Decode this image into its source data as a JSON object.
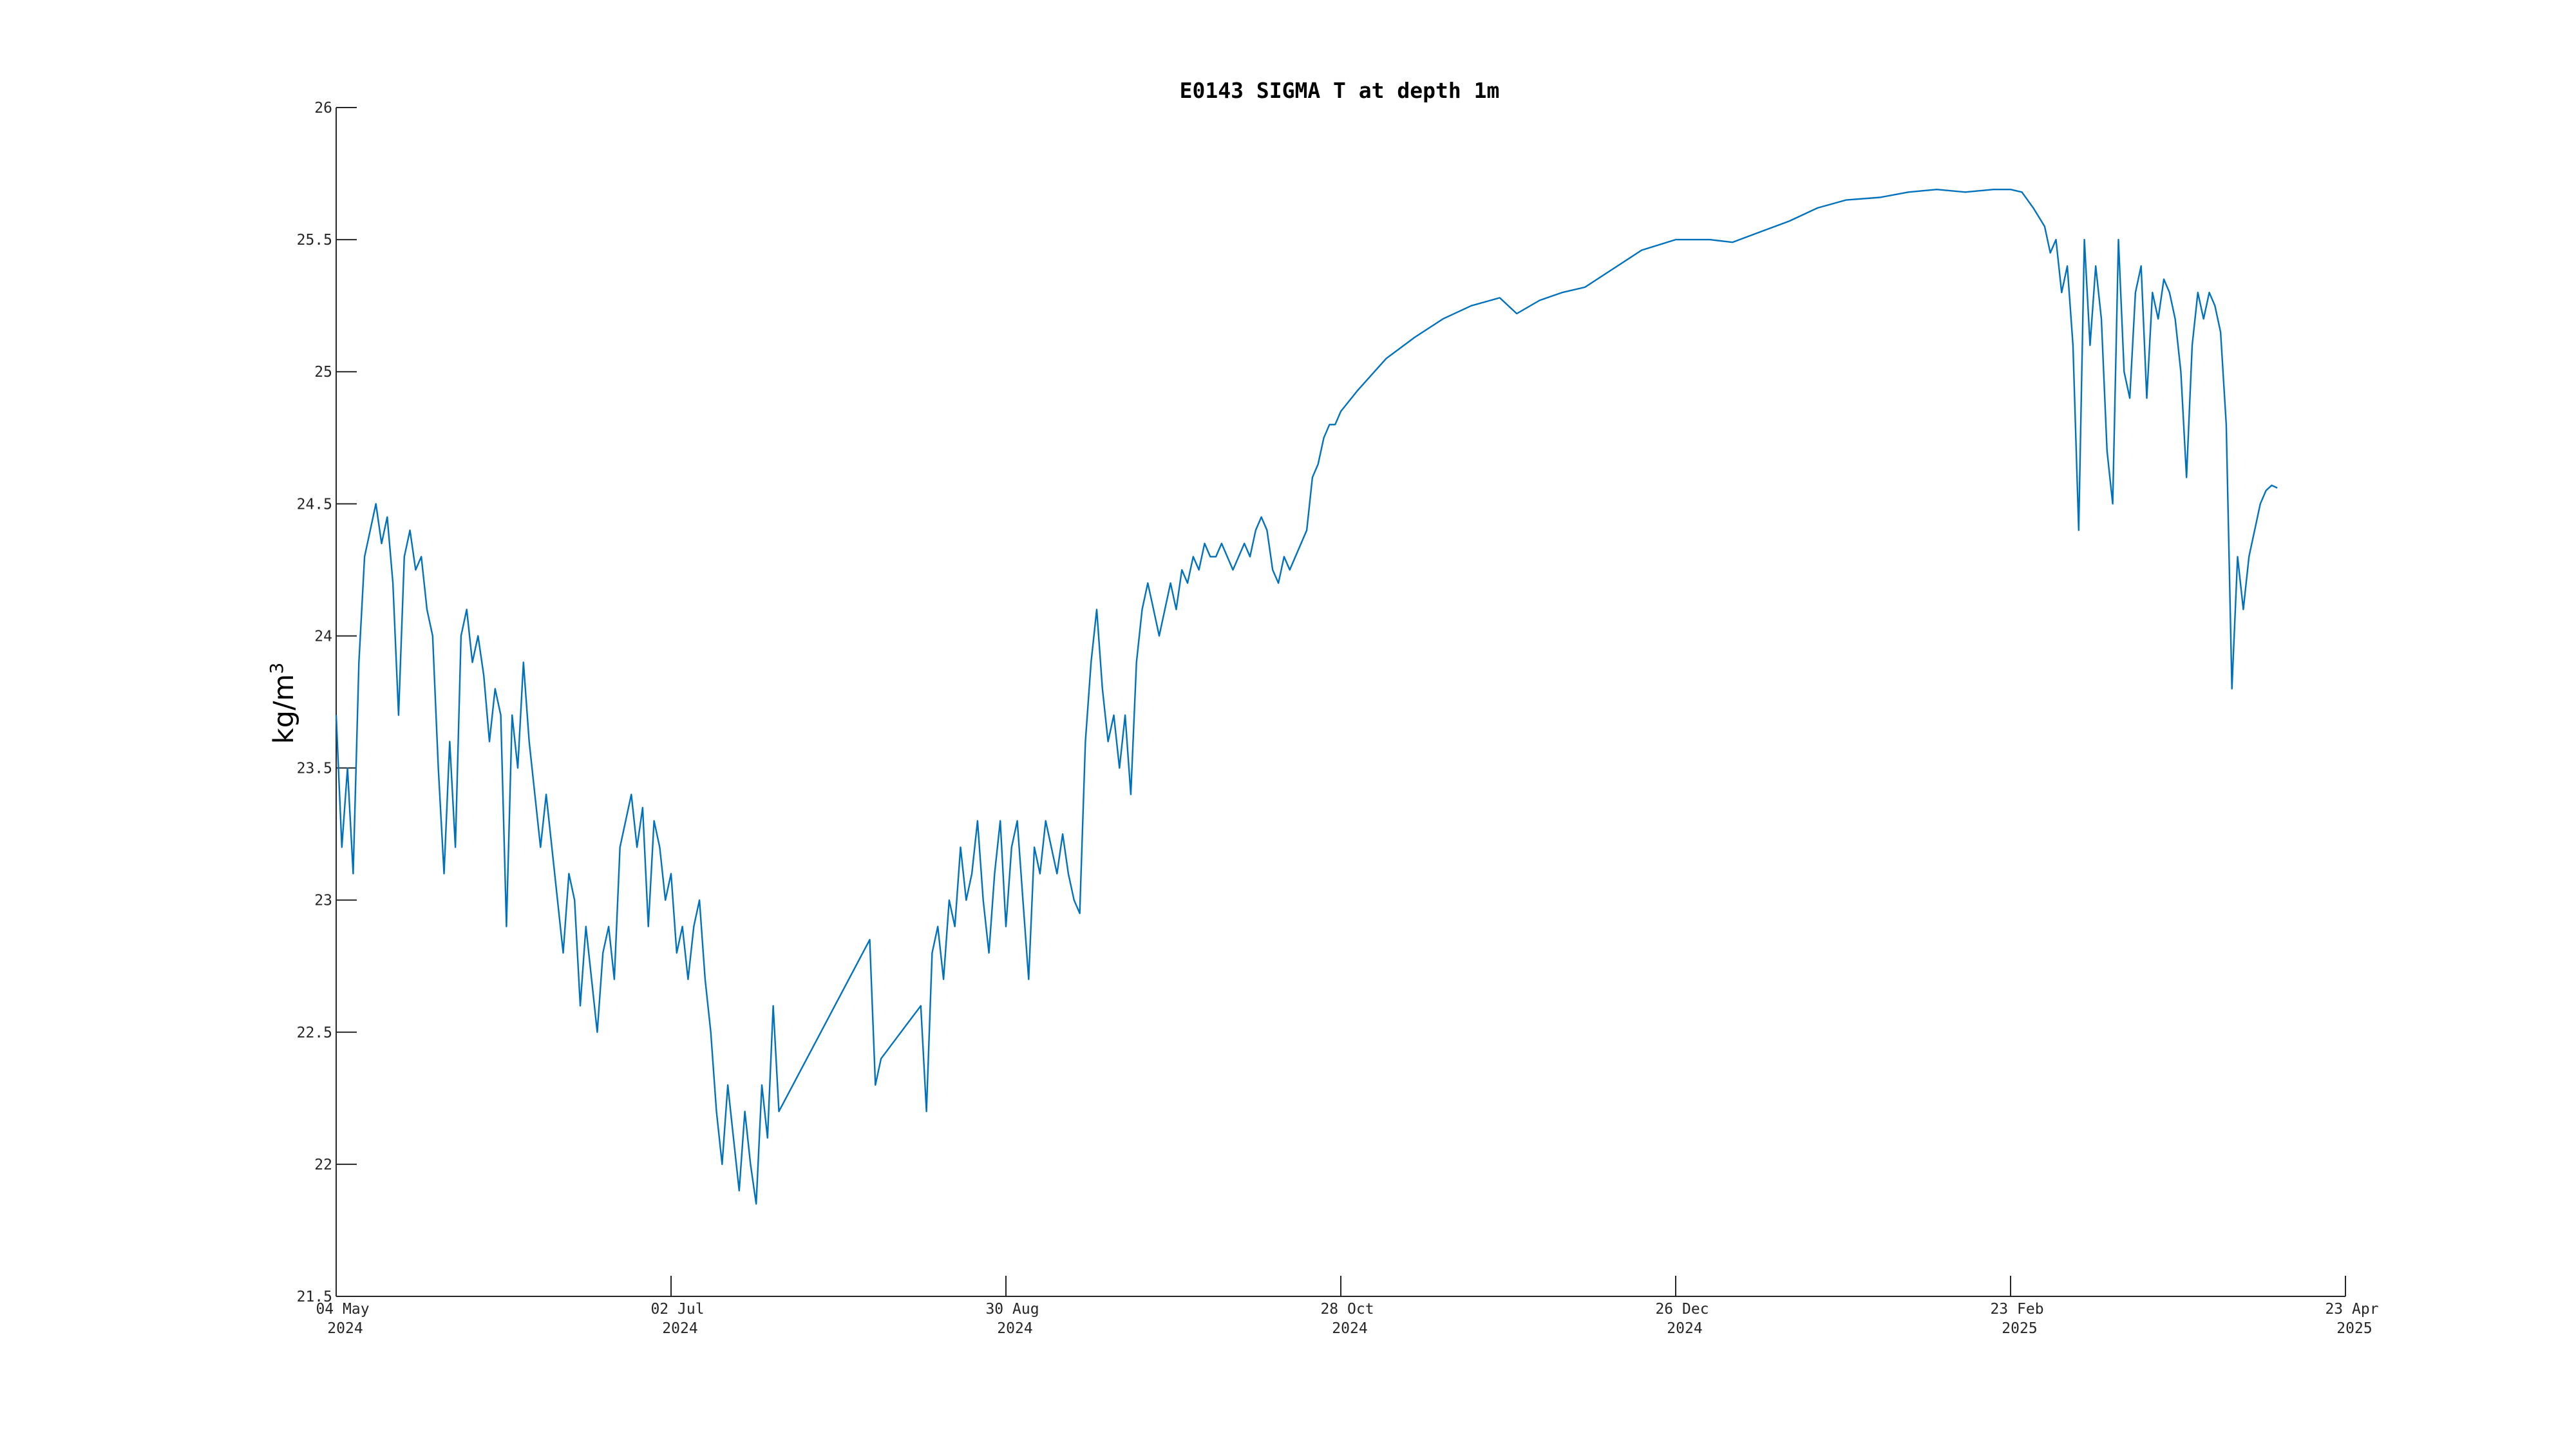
{
  "chart_data": {
    "type": "line",
    "title": "E0143 SIGMA T at depth 1m",
    "xlabel": "",
    "ylabel": "kg/m",
    "ylabel_superscript": "3",
    "ylim": [
      21.5,
      26
    ],
    "xlim": [
      "2024-05-04",
      "2025-04-23"
    ],
    "grid": false,
    "y_ticks": [
      "21.5",
      "22",
      "22.5",
      "23",
      "23.5",
      "24",
      "24.5",
      "25",
      "25.5",
      "26"
    ],
    "x_ticks": [
      {
        "date": "2024-05-04",
        "line1": "04 May",
        "line2": "2024"
      },
      {
        "date": "2024-07-02",
        "line1": "02 Jul",
        "line2": "2024"
      },
      {
        "date": "2024-08-30",
        "line1": "30 Aug",
        "line2": "2024"
      },
      {
        "date": "2024-10-28",
        "line1": "28 Oct",
        "line2": "2024"
      },
      {
        "date": "2024-12-26",
        "line1": "26 Dec",
        "line2": "2024"
      },
      {
        "date": "2025-02-23",
        "line1": "23 Feb",
        "line2": "2025"
      },
      {
        "date": "2025-04-23",
        "line1": "23 Apr",
        "line2": "2025"
      }
    ],
    "series": [
      {
        "color": "#0072BD",
        "points": [
          [
            "2024-05-04",
            23.7
          ],
          [
            "2024-05-05",
            23.2
          ],
          [
            "2024-05-06",
            23.5
          ],
          [
            "2024-05-07",
            23.1
          ],
          [
            "2024-05-08",
            23.9
          ],
          [
            "2024-05-09",
            24.3
          ],
          [
            "2024-05-10",
            24.4
          ],
          [
            "2024-05-11",
            24.5
          ],
          [
            "2024-05-12",
            24.35
          ],
          [
            "2024-05-13",
            24.45
          ],
          [
            "2024-05-14",
            24.2
          ],
          [
            "2024-05-15",
            23.7
          ],
          [
            "2024-05-16",
            24.3
          ],
          [
            "2024-05-17",
            24.4
          ],
          [
            "2024-05-18",
            24.25
          ],
          [
            "2024-05-19",
            24.3
          ],
          [
            "2024-05-20",
            24.1
          ],
          [
            "2024-05-21",
            24.0
          ],
          [
            "2024-05-22",
            23.5
          ],
          [
            "2024-05-23",
            23.1
          ],
          [
            "2024-05-24",
            23.6
          ],
          [
            "2024-05-25",
            23.2
          ],
          [
            "2024-05-26",
            24.0
          ],
          [
            "2024-05-27",
            24.1
          ],
          [
            "2024-05-28",
            23.9
          ],
          [
            "2024-05-29",
            24.0
          ],
          [
            "2024-05-30",
            23.85
          ],
          [
            "2024-05-31",
            23.6
          ],
          [
            "2024-06-01",
            23.8
          ],
          [
            "2024-06-02",
            23.7
          ],
          [
            "2024-06-03",
            22.9
          ],
          [
            "2024-06-04",
            23.7
          ],
          [
            "2024-06-05",
            23.5
          ],
          [
            "2024-06-06",
            23.9
          ],
          [
            "2024-06-07",
            23.6
          ],
          [
            "2024-06-08",
            23.4
          ],
          [
            "2024-06-09",
            23.2
          ],
          [
            "2024-06-10",
            23.4
          ],
          [
            "2024-06-11",
            23.2
          ],
          [
            "2024-06-12",
            23.0
          ],
          [
            "2024-06-13",
            22.8
          ],
          [
            "2024-06-14",
            23.1
          ],
          [
            "2024-06-15",
            23.0
          ],
          [
            "2024-06-16",
            22.6
          ],
          [
            "2024-06-17",
            22.9
          ],
          [
            "2024-06-18",
            22.7
          ],
          [
            "2024-06-19",
            22.5
          ],
          [
            "2024-06-20",
            22.8
          ],
          [
            "2024-06-21",
            22.9
          ],
          [
            "2024-06-22",
            22.7
          ],
          [
            "2024-06-23",
            23.2
          ],
          [
            "2024-06-24",
            23.3
          ],
          [
            "2024-06-25",
            23.4
          ],
          [
            "2024-06-26",
            23.2
          ],
          [
            "2024-06-27",
            23.35
          ],
          [
            "2024-06-28",
            22.9
          ],
          [
            "2024-06-29",
            23.3
          ],
          [
            "2024-06-30",
            23.2
          ],
          [
            "2024-07-01",
            23.0
          ],
          [
            "2024-07-02",
            23.1
          ],
          [
            "2024-07-03",
            22.8
          ],
          [
            "2024-07-04",
            22.9
          ],
          [
            "2024-07-05",
            22.7
          ],
          [
            "2024-07-06",
            22.9
          ],
          [
            "2024-07-07",
            23.0
          ],
          [
            "2024-07-08",
            22.7
          ],
          [
            "2024-07-09",
            22.5
          ],
          [
            "2024-07-10",
            22.2
          ],
          [
            "2024-07-11",
            22.0
          ],
          [
            "2024-07-12",
            22.3
          ],
          [
            "2024-07-13",
            22.1
          ],
          [
            "2024-07-14",
            21.9
          ],
          [
            "2024-07-15",
            22.2
          ],
          [
            "2024-07-16",
            22.0
          ],
          [
            "2024-07-17",
            21.85
          ],
          [
            "2024-07-18",
            22.3
          ],
          [
            "2024-07-19",
            22.1
          ],
          [
            "2024-07-20",
            22.6
          ],
          [
            "2024-07-21",
            22.2
          ],
          [
            "2024-08-06",
            22.85
          ],
          [
            "2024-08-07",
            22.3
          ],
          [
            "2024-08-08",
            22.4
          ],
          [
            "2024-08-15",
            22.6
          ],
          [
            "2024-08-16",
            22.2
          ],
          [
            "2024-08-17",
            22.8
          ],
          [
            "2024-08-18",
            22.9
          ],
          [
            "2024-08-19",
            22.7
          ],
          [
            "2024-08-20",
            23.0
          ],
          [
            "2024-08-21",
            22.9
          ],
          [
            "2024-08-22",
            23.2
          ],
          [
            "2024-08-23",
            23.0
          ],
          [
            "2024-08-24",
            23.1
          ],
          [
            "2024-08-25",
            23.3
          ],
          [
            "2024-08-26",
            23.0
          ],
          [
            "2024-08-27",
            22.8
          ],
          [
            "2024-08-28",
            23.1
          ],
          [
            "2024-08-29",
            23.3
          ],
          [
            "2024-08-30",
            22.9
          ],
          [
            "2024-08-31",
            23.2
          ],
          [
            "2024-09-01",
            23.3
          ],
          [
            "2024-09-02",
            23.0
          ],
          [
            "2024-09-03",
            22.7
          ],
          [
            "2024-09-04",
            23.2
          ],
          [
            "2024-09-05",
            23.1
          ],
          [
            "2024-09-06",
            23.3
          ],
          [
            "2024-09-07",
            23.2
          ],
          [
            "2024-09-08",
            23.1
          ],
          [
            "2024-09-09",
            23.25
          ],
          [
            "2024-09-10",
            23.1
          ],
          [
            "2024-09-11",
            23.0
          ],
          [
            "2024-09-12",
            22.95
          ],
          [
            "2024-09-13",
            23.6
          ],
          [
            "2024-09-14",
            23.9
          ],
          [
            "2024-09-15",
            24.1
          ],
          [
            "2024-09-16",
            23.8
          ],
          [
            "2024-09-17",
            23.6
          ],
          [
            "2024-09-18",
            23.7
          ],
          [
            "2024-09-19",
            23.5
          ],
          [
            "2024-09-20",
            23.7
          ],
          [
            "2024-09-21",
            23.4
          ],
          [
            "2024-09-22",
            23.9
          ],
          [
            "2024-09-23",
            24.1
          ],
          [
            "2024-09-24",
            24.2
          ],
          [
            "2024-09-25",
            24.1
          ],
          [
            "2024-09-26",
            24.0
          ],
          [
            "2024-09-27",
            24.1
          ],
          [
            "2024-09-28",
            24.2
          ],
          [
            "2024-09-29",
            24.1
          ],
          [
            "2024-09-30",
            24.25
          ],
          [
            "2024-10-01",
            24.2
          ],
          [
            "2024-10-02",
            24.3
          ],
          [
            "2024-10-03",
            24.25
          ],
          [
            "2024-10-04",
            24.35
          ],
          [
            "2024-10-05",
            24.3
          ],
          [
            "2024-10-06",
            24.3
          ],
          [
            "2024-10-07",
            24.35
          ],
          [
            "2024-10-08",
            24.3
          ],
          [
            "2024-10-09",
            24.25
          ],
          [
            "2024-10-10",
            24.3
          ],
          [
            "2024-10-11",
            24.35
          ],
          [
            "2024-10-12",
            24.3
          ],
          [
            "2024-10-13",
            24.4
          ],
          [
            "2024-10-14",
            24.45
          ],
          [
            "2024-10-15",
            24.4
          ],
          [
            "2024-10-16",
            24.25
          ],
          [
            "2024-10-17",
            24.2
          ],
          [
            "2024-10-18",
            24.3
          ],
          [
            "2024-10-19",
            24.25
          ],
          [
            "2024-10-20",
            24.3
          ],
          [
            "2024-10-21",
            24.35
          ],
          [
            "2024-10-22",
            24.4
          ],
          [
            "2024-10-23",
            24.6
          ],
          [
            "2024-10-24",
            24.65
          ],
          [
            "2024-10-25",
            24.75
          ],
          [
            "2024-10-26",
            24.8
          ],
          [
            "2024-10-27",
            24.8
          ],
          [
            "2024-10-28",
            24.85
          ],
          [
            "2024-10-31",
            24.93
          ],
          [
            "2024-11-05",
            25.05
          ],
          [
            "2024-11-10",
            25.13
          ],
          [
            "2024-11-15",
            25.2
          ],
          [
            "2024-11-20",
            25.25
          ],
          [
            "2024-11-25",
            25.28
          ],
          [
            "2024-11-28",
            25.22
          ],
          [
            "2024-12-02",
            25.27
          ],
          [
            "2024-12-06",
            25.3
          ],
          [
            "2024-12-10",
            25.32
          ],
          [
            "2024-12-15",
            25.39
          ],
          [
            "2024-12-20",
            25.46
          ],
          [
            "2024-12-26",
            25.5
          ],
          [
            "2025-01-01",
            25.5
          ],
          [
            "2025-01-05",
            25.49
          ],
          [
            "2025-01-10",
            25.53
          ],
          [
            "2025-01-15",
            25.57
          ],
          [
            "2025-01-20",
            25.62
          ],
          [
            "2025-01-25",
            25.65
          ],
          [
            "2025-01-31",
            25.66
          ],
          [
            "2025-02-05",
            25.68
          ],
          [
            "2025-02-10",
            25.69
          ],
          [
            "2025-02-15",
            25.68
          ],
          [
            "2025-02-20",
            25.69
          ],
          [
            "2025-02-23",
            25.69
          ],
          [
            "2025-02-25",
            25.68
          ],
          [
            "2025-02-27",
            25.62
          ],
          [
            "2025-03-01",
            25.55
          ],
          [
            "2025-03-02",
            25.45
          ],
          [
            "2025-03-03",
            25.5
          ],
          [
            "2025-03-04",
            25.3
          ],
          [
            "2025-03-05",
            25.4
          ],
          [
            "2025-03-06",
            25.1
          ],
          [
            "2025-03-07",
            24.4
          ],
          [
            "2025-03-08",
            25.5
          ],
          [
            "2025-03-09",
            25.1
          ],
          [
            "2025-03-10",
            25.4
          ],
          [
            "2025-03-11",
            25.2
          ],
          [
            "2025-03-12",
            24.7
          ],
          [
            "2025-03-13",
            24.5
          ],
          [
            "2025-03-14",
            25.5
          ],
          [
            "2025-03-15",
            25.0
          ],
          [
            "2025-03-16",
            24.9
          ],
          [
            "2025-03-17",
            25.3
          ],
          [
            "2025-03-18",
            25.4
          ],
          [
            "2025-03-19",
            24.9
          ],
          [
            "2025-03-20",
            25.3
          ],
          [
            "2025-03-21",
            25.2
          ],
          [
            "2025-03-22",
            25.35
          ],
          [
            "2025-03-23",
            25.3
          ],
          [
            "2025-03-24",
            25.2
          ],
          [
            "2025-03-25",
            25.0
          ],
          [
            "2025-03-26",
            24.6
          ],
          [
            "2025-03-27",
            25.1
          ],
          [
            "2025-03-28",
            25.3
          ],
          [
            "2025-03-29",
            25.2
          ],
          [
            "2025-03-30",
            25.3
          ],
          [
            "2025-03-31",
            25.25
          ],
          [
            "2025-04-01",
            25.15
          ],
          [
            "2025-04-02",
            24.8
          ],
          [
            "2025-04-03",
            23.8
          ],
          [
            "2025-04-04",
            24.3
          ],
          [
            "2025-04-05",
            24.1
          ],
          [
            "2025-04-06",
            24.3
          ],
          [
            "2025-04-07",
            24.4
          ],
          [
            "2025-04-08",
            24.5
          ],
          [
            "2025-04-09",
            24.55
          ],
          [
            "2025-04-10",
            24.57
          ],
          [
            "2025-04-11",
            24.56
          ]
        ]
      }
    ]
  }
}
